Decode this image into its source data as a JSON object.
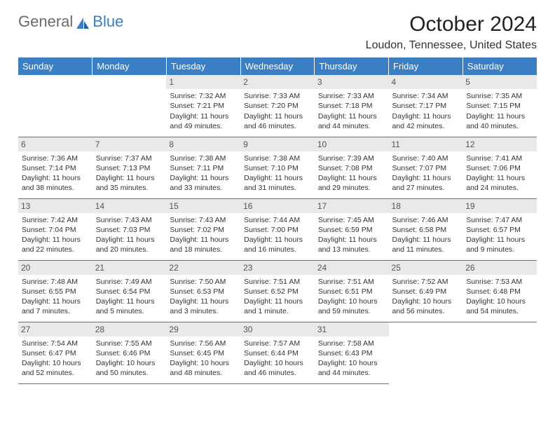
{
  "logo": {
    "text1": "General",
    "text2": "Blue"
  },
  "title": "October 2024",
  "location": "Loudon, Tennessee, United States",
  "colors": {
    "header_bg": "#3a7fc4",
    "header_text": "#ffffff",
    "daynum_bg": "#e9e9e9",
    "border": "#3a7fc4",
    "logo_gray": "#6b6b6b",
    "logo_blue": "#3a7fc4"
  },
  "weekdays": [
    "Sunday",
    "Monday",
    "Tuesday",
    "Wednesday",
    "Thursday",
    "Friday",
    "Saturday"
  ],
  "first_day_index": 2,
  "days": [
    {
      "n": 1,
      "sunrise": "7:32 AM",
      "sunset": "7:21 PM",
      "daylight": "11 hours and 49 minutes."
    },
    {
      "n": 2,
      "sunrise": "7:33 AM",
      "sunset": "7:20 PM",
      "daylight": "11 hours and 46 minutes."
    },
    {
      "n": 3,
      "sunrise": "7:33 AM",
      "sunset": "7:18 PM",
      "daylight": "11 hours and 44 minutes."
    },
    {
      "n": 4,
      "sunrise": "7:34 AM",
      "sunset": "7:17 PM",
      "daylight": "11 hours and 42 minutes."
    },
    {
      "n": 5,
      "sunrise": "7:35 AM",
      "sunset": "7:15 PM",
      "daylight": "11 hours and 40 minutes."
    },
    {
      "n": 6,
      "sunrise": "7:36 AM",
      "sunset": "7:14 PM",
      "daylight": "11 hours and 38 minutes."
    },
    {
      "n": 7,
      "sunrise": "7:37 AM",
      "sunset": "7:13 PM",
      "daylight": "11 hours and 35 minutes."
    },
    {
      "n": 8,
      "sunrise": "7:38 AM",
      "sunset": "7:11 PM",
      "daylight": "11 hours and 33 minutes."
    },
    {
      "n": 9,
      "sunrise": "7:38 AM",
      "sunset": "7:10 PM",
      "daylight": "11 hours and 31 minutes."
    },
    {
      "n": 10,
      "sunrise": "7:39 AM",
      "sunset": "7:08 PM",
      "daylight": "11 hours and 29 minutes."
    },
    {
      "n": 11,
      "sunrise": "7:40 AM",
      "sunset": "7:07 PM",
      "daylight": "11 hours and 27 minutes."
    },
    {
      "n": 12,
      "sunrise": "7:41 AM",
      "sunset": "7:06 PM",
      "daylight": "11 hours and 24 minutes."
    },
    {
      "n": 13,
      "sunrise": "7:42 AM",
      "sunset": "7:04 PM",
      "daylight": "11 hours and 22 minutes."
    },
    {
      "n": 14,
      "sunrise": "7:43 AM",
      "sunset": "7:03 PM",
      "daylight": "11 hours and 20 minutes."
    },
    {
      "n": 15,
      "sunrise": "7:43 AM",
      "sunset": "7:02 PM",
      "daylight": "11 hours and 18 minutes."
    },
    {
      "n": 16,
      "sunrise": "7:44 AM",
      "sunset": "7:00 PM",
      "daylight": "11 hours and 16 minutes."
    },
    {
      "n": 17,
      "sunrise": "7:45 AM",
      "sunset": "6:59 PM",
      "daylight": "11 hours and 13 minutes."
    },
    {
      "n": 18,
      "sunrise": "7:46 AM",
      "sunset": "6:58 PM",
      "daylight": "11 hours and 11 minutes."
    },
    {
      "n": 19,
      "sunrise": "7:47 AM",
      "sunset": "6:57 PM",
      "daylight": "11 hours and 9 minutes."
    },
    {
      "n": 20,
      "sunrise": "7:48 AM",
      "sunset": "6:55 PM",
      "daylight": "11 hours and 7 minutes."
    },
    {
      "n": 21,
      "sunrise": "7:49 AM",
      "sunset": "6:54 PM",
      "daylight": "11 hours and 5 minutes."
    },
    {
      "n": 22,
      "sunrise": "7:50 AM",
      "sunset": "6:53 PM",
      "daylight": "11 hours and 3 minutes."
    },
    {
      "n": 23,
      "sunrise": "7:51 AM",
      "sunset": "6:52 PM",
      "daylight": "11 hours and 1 minute."
    },
    {
      "n": 24,
      "sunrise": "7:51 AM",
      "sunset": "6:51 PM",
      "daylight": "10 hours and 59 minutes."
    },
    {
      "n": 25,
      "sunrise": "7:52 AM",
      "sunset": "6:49 PM",
      "daylight": "10 hours and 56 minutes."
    },
    {
      "n": 26,
      "sunrise": "7:53 AM",
      "sunset": "6:48 PM",
      "daylight": "10 hours and 54 minutes."
    },
    {
      "n": 27,
      "sunrise": "7:54 AM",
      "sunset": "6:47 PM",
      "daylight": "10 hours and 52 minutes."
    },
    {
      "n": 28,
      "sunrise": "7:55 AM",
      "sunset": "6:46 PM",
      "daylight": "10 hours and 50 minutes."
    },
    {
      "n": 29,
      "sunrise": "7:56 AM",
      "sunset": "6:45 PM",
      "daylight": "10 hours and 48 minutes."
    },
    {
      "n": 30,
      "sunrise": "7:57 AM",
      "sunset": "6:44 PM",
      "daylight": "10 hours and 46 minutes."
    },
    {
      "n": 31,
      "sunrise": "7:58 AM",
      "sunset": "6:43 PM",
      "daylight": "10 hours and 44 minutes."
    }
  ],
  "labels": {
    "sunrise": "Sunrise:",
    "sunset": "Sunset:",
    "daylight": "Daylight:"
  }
}
